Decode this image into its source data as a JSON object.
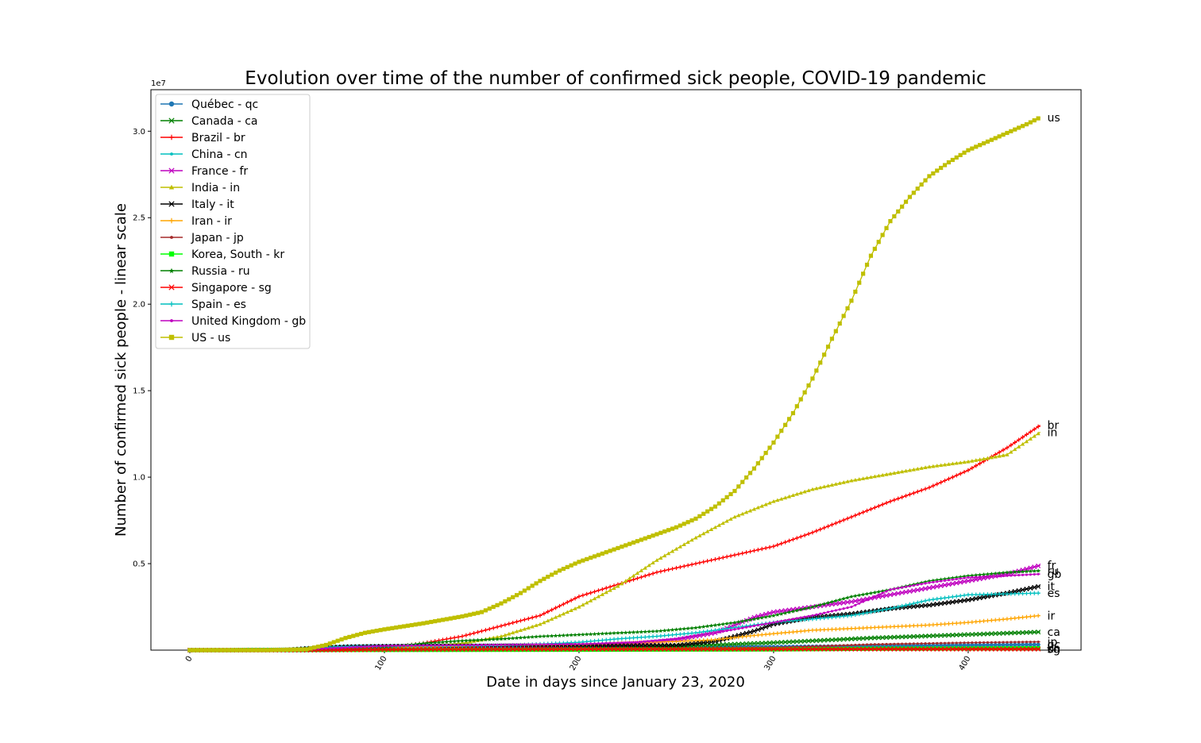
{
  "chart_data": {
    "type": "line",
    "title": "Evolution over time of the number of confirmed sick people, COVID-19 pandemic",
    "xlabel": "Date in days since January 23, 2020",
    "ylabel": "Number of confirmed sick people - linear scale",
    "y_offset_text": "1e7",
    "xlim": [
      -20,
      458
    ],
    "ylim": [
      0,
      32400000
    ],
    "x_ticks": [
      0,
      100,
      200,
      300,
      400
    ],
    "y_ticks": [
      0.5,
      1.0,
      1.5,
      2.0,
      2.5,
      3.0
    ],
    "y_tick_scale": 10000000,
    "x_last": 437,
    "legend_position": "upper-left",
    "grid": false,
    "series": [
      {
        "name": "Québec - qc",
        "label": "qc",
        "color": "#1f77b4",
        "marker": "circle",
        "points": [
          [
            0,
            0
          ],
          [
            45,
            0
          ],
          [
            60,
            1000
          ],
          [
            100,
            60000
          ],
          [
            200,
            75000
          ],
          [
            300,
            190000
          ],
          [
            400,
            290000
          ],
          [
            437,
            320000
          ]
        ]
      },
      {
        "name": "Canada - ca",
        "label": "ca",
        "color": "#008000",
        "marker": "x",
        "points": [
          [
            0,
            0
          ],
          [
            45,
            0
          ],
          [
            60,
            1000
          ],
          [
            100,
            80000
          ],
          [
            150,
            100000
          ],
          [
            200,
            150000
          ],
          [
            250,
            220000
          ],
          [
            300,
            430000
          ],
          [
            350,
            700000
          ],
          [
            400,
            900000
          ],
          [
            437,
            1050000
          ]
        ]
      },
      {
        "name": "Brazil - br",
        "label": "br",
        "color": "#ff0000",
        "marker": "plus",
        "points": [
          [
            0,
            0
          ],
          [
            40,
            0
          ],
          [
            70,
            10000
          ],
          [
            100,
            100000
          ],
          [
            120,
            400000
          ],
          [
            140,
            800000
          ],
          [
            160,
            1400000
          ],
          [
            180,
            2000000
          ],
          [
            200,
            3100000
          ],
          [
            220,
            3800000
          ],
          [
            240,
            4500000
          ],
          [
            260,
            5000000
          ],
          [
            280,
            5500000
          ],
          [
            300,
            6000000
          ],
          [
            320,
            6800000
          ],
          [
            340,
            7700000
          ],
          [
            360,
            8600000
          ],
          [
            380,
            9400000
          ],
          [
            400,
            10400000
          ],
          [
            420,
            11700000
          ],
          [
            437,
            13000000
          ]
        ]
      },
      {
        "name": "China - cn",
        "label": "cn",
        "color": "#00bfbf",
        "marker": "dot",
        "points": [
          [
            0,
            600
          ],
          [
            10,
            20000
          ],
          [
            20,
            50000
          ],
          [
            30,
            75000
          ],
          [
            40,
            80000
          ],
          [
            60,
            82000
          ],
          [
            100,
            84000
          ],
          [
            200,
            86000
          ],
          [
            300,
            90000
          ],
          [
            437,
            101000
          ]
        ]
      },
      {
        "name": "France - fr",
        "label": "fr",
        "color": "#bf00bf",
        "marker": "x",
        "points": [
          [
            0,
            0
          ],
          [
            40,
            100
          ],
          [
            50,
            5000
          ],
          [
            60,
            40000
          ],
          [
            80,
            150000
          ],
          [
            100,
            180000
          ],
          [
            150,
            200000
          ],
          [
            200,
            250000
          ],
          [
            230,
            400000
          ],
          [
            250,
            600000
          ],
          [
            270,
            1000000
          ],
          [
            290,
            1900000
          ],
          [
            300,
            2200000
          ],
          [
            320,
            2500000
          ],
          [
            340,
            2800000
          ],
          [
            360,
            3200000
          ],
          [
            380,
            3600000
          ],
          [
            400,
            4000000
          ],
          [
            420,
            4400000
          ],
          [
            437,
            4900000
          ]
        ]
      },
      {
        "name": "India - in",
        "label": "in",
        "color": "#bfbf00",
        "marker": "triangle",
        "points": [
          [
            0,
            0
          ],
          [
            60,
            1000
          ],
          [
            80,
            10000
          ],
          [
            100,
            80000
          ],
          [
            120,
            200000
          ],
          [
            140,
            400000
          ],
          [
            160,
            800000
          ],
          [
            180,
            1500000
          ],
          [
            200,
            2500000
          ],
          [
            220,
            3700000
          ],
          [
            240,
            5200000
          ],
          [
            260,
            6500000
          ],
          [
            280,
            7700000
          ],
          [
            300,
            8600000
          ],
          [
            320,
            9300000
          ],
          [
            340,
            9800000
          ],
          [
            360,
            10200000
          ],
          [
            380,
            10600000
          ],
          [
            400,
            10900000
          ],
          [
            420,
            11300000
          ],
          [
            437,
            12600000
          ]
        ]
      },
      {
        "name": "Italy - it",
        "label": "it",
        "color": "#000000",
        "marker": "x",
        "points": [
          [
            0,
            0
          ],
          [
            30,
            0
          ],
          [
            40,
            1000
          ],
          [
            50,
            20000
          ],
          [
            60,
            100000
          ],
          [
            80,
            200000
          ],
          [
            100,
            230000
          ],
          [
            200,
            260000
          ],
          [
            250,
            280000
          ],
          [
            270,
            500000
          ],
          [
            290,
            1100000
          ],
          [
            300,
            1500000
          ],
          [
            320,
            1900000
          ],
          [
            340,
            2100000
          ],
          [
            360,
            2400000
          ],
          [
            380,
            2600000
          ],
          [
            400,
            2900000
          ],
          [
            420,
            3300000
          ],
          [
            437,
            3700000
          ]
        ]
      },
      {
        "name": "Iran - ir",
        "label": "ir",
        "color": "#ffa500",
        "marker": "plus",
        "points": [
          [
            0,
            0
          ],
          [
            30,
            0
          ],
          [
            40,
            1000
          ],
          [
            60,
            50000
          ],
          [
            80,
            90000
          ],
          [
            100,
            150000
          ],
          [
            150,
            250000
          ],
          [
            200,
            350000
          ],
          [
            250,
            500000
          ],
          [
            270,
            600000
          ],
          [
            290,
            850000
          ],
          [
            300,
            950000
          ],
          [
            320,
            1150000
          ],
          [
            340,
            1250000
          ],
          [
            360,
            1350000
          ],
          [
            380,
            1450000
          ],
          [
            400,
            1600000
          ],
          [
            420,
            1800000
          ],
          [
            437,
            2000000
          ]
        ]
      },
      {
        "name": "Japan - jp",
        "label": "jp",
        "color": "#a52a2a",
        "marker": "dot",
        "points": [
          [
            0,
            0
          ],
          [
            50,
            500
          ],
          [
            70,
            3000
          ],
          [
            100,
            17000
          ],
          [
            150,
            20000
          ],
          [
            200,
            70000
          ],
          [
            250,
            100000
          ],
          [
            300,
            140000
          ],
          [
            350,
            330000
          ],
          [
            400,
            430000
          ],
          [
            437,
            480000
          ]
        ]
      },
      {
        "name": "Korea, South - kr",
        "label": "kr",
        "color": "#00ff00",
        "marker": "square",
        "points": [
          [
            0,
            0
          ],
          [
            20,
            100
          ],
          [
            40,
            7000
          ],
          [
            60,
            10000
          ],
          [
            100,
            11000
          ],
          [
            200,
            22000
          ],
          [
            300,
            40000
          ],
          [
            350,
            80000
          ],
          [
            400,
            95000
          ],
          [
            437,
            110000
          ]
        ]
      },
      {
        "name": "Russia - ru",
        "label": "ru",
        "color": "#008000",
        "marker": "star",
        "points": [
          [
            0,
            0
          ],
          [
            50,
            0
          ],
          [
            60,
            500
          ],
          [
            80,
            30000
          ],
          [
            100,
            150000
          ],
          [
            120,
            400000
          ],
          [
            140,
            550000
          ],
          [
            160,
            650000
          ],
          [
            180,
            800000
          ],
          [
            200,
            900000
          ],
          [
            220,
            1000000
          ],
          [
            240,
            1100000
          ],
          [
            260,
            1300000
          ],
          [
            280,
            1600000
          ],
          [
            300,
            2000000
          ],
          [
            320,
            2500000
          ],
          [
            340,
            3100000
          ],
          [
            360,
            3500000
          ],
          [
            380,
            4000000
          ],
          [
            400,
            4300000
          ],
          [
            420,
            4500000
          ],
          [
            437,
            4600000
          ]
        ]
      },
      {
        "name": "Singapore - sg",
        "label": "sg",
        "color": "#ff0000",
        "marker": "x",
        "points": [
          [
            0,
            0
          ],
          [
            60,
            1000
          ],
          [
            80,
            10000
          ],
          [
            100,
            30000
          ],
          [
            120,
            40000
          ],
          [
            150,
            50000
          ],
          [
            200,
            57000
          ],
          [
            300,
            58000
          ],
          [
            437,
            61000
          ]
        ]
      },
      {
        "name": "Spain - es",
        "label": "es",
        "color": "#00bfbf",
        "marker": "plus",
        "points": [
          [
            0,
            0
          ],
          [
            40,
            200
          ],
          [
            50,
            20000
          ],
          [
            60,
            100000
          ],
          [
            70,
            170000
          ],
          [
            80,
            210000
          ],
          [
            100,
            240000
          ],
          [
            150,
            260000
          ],
          [
            170,
            300000
          ],
          [
            200,
            450000
          ],
          [
            220,
            650000
          ],
          [
            240,
            800000
          ],
          [
            260,
            1000000
          ],
          [
            280,
            1300000
          ],
          [
            300,
            1600000
          ],
          [
            320,
            1800000
          ],
          [
            340,
            2000000
          ],
          [
            360,
            2400000
          ],
          [
            380,
            2900000
          ],
          [
            400,
            3200000
          ],
          [
            420,
            3250000
          ],
          [
            437,
            3300000
          ]
        ]
      },
      {
        "name": "United Kingdom - gb",
        "label": "gb",
        "color": "#bf00bf",
        "marker": "dot",
        "points": [
          [
            0,
            0
          ],
          [
            40,
            100
          ],
          [
            50,
            5000
          ],
          [
            60,
            40000
          ],
          [
            80,
            150000
          ],
          [
            100,
            250000
          ],
          [
            150,
            300000
          ],
          [
            200,
            350000
          ],
          [
            230,
            450000
          ],
          [
            250,
            650000
          ],
          [
            270,
            1000000
          ],
          [
            290,
            1400000
          ],
          [
            300,
            1600000
          ],
          [
            320,
            2000000
          ],
          [
            340,
            2500000
          ],
          [
            350,
            3000000
          ],
          [
            360,
            3500000
          ],
          [
            380,
            3900000
          ],
          [
            400,
            4200000
          ],
          [
            420,
            4300000
          ],
          [
            437,
            4400000
          ]
        ]
      },
      {
        "name": "US - us",
        "label": "us",
        "color": "#bfbf00",
        "marker": "square",
        "points": [
          [
            0,
            0
          ],
          [
            40,
            1000
          ],
          [
            60,
            50000
          ],
          [
            70,
            300000
          ],
          [
            80,
            700000
          ],
          [
            90,
            1000000
          ],
          [
            100,
            1200000
          ],
          [
            120,
            1550000
          ],
          [
            140,
            1950000
          ],
          [
            150,
            2200000
          ],
          [
            160,
            2700000
          ],
          [
            170,
            3300000
          ],
          [
            180,
            4000000
          ],
          [
            190,
            4600000
          ],
          [
            200,
            5100000
          ],
          [
            210,
            5500000
          ],
          [
            220,
            5900000
          ],
          [
            230,
            6300000
          ],
          [
            240,
            6700000
          ],
          [
            250,
            7100000
          ],
          [
            260,
            7600000
          ],
          [
            270,
            8300000
          ],
          [
            280,
            9200000
          ],
          [
            290,
            10500000
          ],
          [
            300,
            12000000
          ],
          [
            310,
            13700000
          ],
          [
            320,
            15700000
          ],
          [
            330,
            18000000
          ],
          [
            340,
            20200000
          ],
          [
            350,
            22800000
          ],
          [
            360,
            24800000
          ],
          [
            370,
            26200000
          ],
          [
            380,
            27400000
          ],
          [
            390,
            28200000
          ],
          [
            400,
            28900000
          ],
          [
            410,
            29400000
          ],
          [
            420,
            29900000
          ],
          [
            430,
            30400000
          ],
          [
            437,
            30800000
          ]
        ]
      }
    ]
  }
}
